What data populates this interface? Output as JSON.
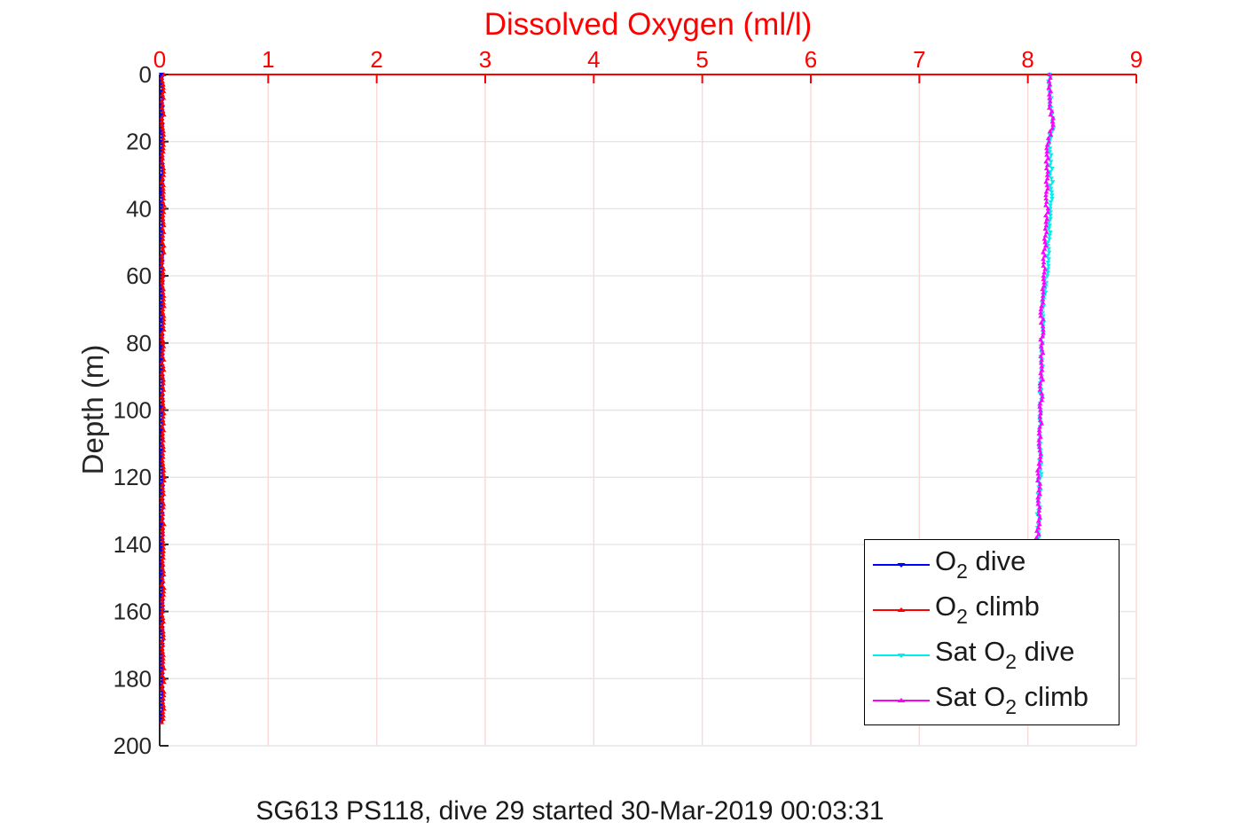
{
  "title": {
    "text": "Dissolved Oxygen (ml/l)",
    "color": "#ff0000"
  },
  "caption": {
    "text": "SG613 PS118, dive 29 started 30-Mar-2019 00:03:31"
  },
  "axes": {
    "x": {
      "label": "Dissolved Oxygen (ml/l)",
      "color": "#ff0000",
      "grid_color": "#f9d9d9",
      "ticks": [
        0,
        1,
        2,
        3,
        4,
        5,
        6,
        7,
        8,
        9
      ],
      "range": [
        0,
        9
      ]
    },
    "y": {
      "label": "Depth (m)",
      "color": "#262626",
      "grid_color": "#e5e5e5",
      "ticks": [
        0,
        20,
        40,
        60,
        80,
        100,
        120,
        140,
        160,
        180,
        200
      ],
      "range": [
        0,
        200
      ],
      "inverted": true
    }
  },
  "legend": {
    "items": [
      {
        "pre": "O",
        "sub": "2",
        "post": " dive",
        "color": "#0000ff",
        "marker": "v"
      },
      {
        "pre": "O",
        "sub": "2",
        "post": " climb",
        "color": "#ff0000",
        "marker": "^"
      },
      {
        "pre": "Sat O",
        "sub": "2",
        "post": " dive",
        "color": "#00eeee",
        "marker": "v"
      },
      {
        "pre": "Sat O",
        "sub": "2",
        "post": " climb",
        "color": "#ff00ff",
        "marker": "^"
      }
    ]
  },
  "chart_data": {
    "type": "line",
    "title": "Dissolved Oxygen (ml/l)",
    "xlabel": "Dissolved Oxygen (ml/l)",
    "ylabel": "Depth (m)",
    "xlim": [
      0,
      9
    ],
    "ylim": [
      0,
      200
    ],
    "y_axis_inverted": true,
    "grid": true,
    "legend_position": "lower-right-inside",
    "series": [
      {
        "name": "O2 dive",
        "color": "#0000ff",
        "marker": "v",
        "noise": 0.006,
        "sample_step_m": 1,
        "profile_depth_m": [
          0,
          193
        ],
        "profile_o2_mll": [
          0.02,
          0.02
        ]
      },
      {
        "name": "O2 climb",
        "color": "#ff0000",
        "marker": "^",
        "noise": 0.011,
        "sample_step_m": 1,
        "profile_depth_m": [
          0,
          193
        ],
        "profile_o2_mll": [
          0.03,
          0.03
        ]
      },
      {
        "name": "Sat O2 dive",
        "color": "#00eeee",
        "marker": "v",
        "noise": 0.013,
        "sample_step_m": 1,
        "profile_depth_m": [
          0,
          10,
          15,
          20,
          25,
          35,
          45,
          55,
          62,
          70,
          85,
          100,
          120,
          130,
          138
        ],
        "profile_o2_mll": [
          8.2,
          8.21,
          8.23,
          8.2,
          8.21,
          8.22,
          8.2,
          8.19,
          8.16,
          8.14,
          8.13,
          8.12,
          8.11,
          8.1,
          8.09
        ]
      },
      {
        "name": "Sat O2 climb",
        "color": "#ff00ff",
        "marker": "^",
        "noise": 0.013,
        "sample_step_m": 1,
        "profile_depth_m": [
          0,
          10,
          15,
          20,
          25,
          35,
          45,
          55,
          62,
          70,
          85,
          100,
          120,
          130,
          138
        ],
        "profile_o2_mll": [
          8.2,
          8.21,
          8.23,
          8.19,
          8.18,
          8.18,
          8.17,
          8.15,
          8.14,
          8.13,
          8.13,
          8.12,
          8.1,
          8.1,
          8.09
        ]
      }
    ]
  }
}
